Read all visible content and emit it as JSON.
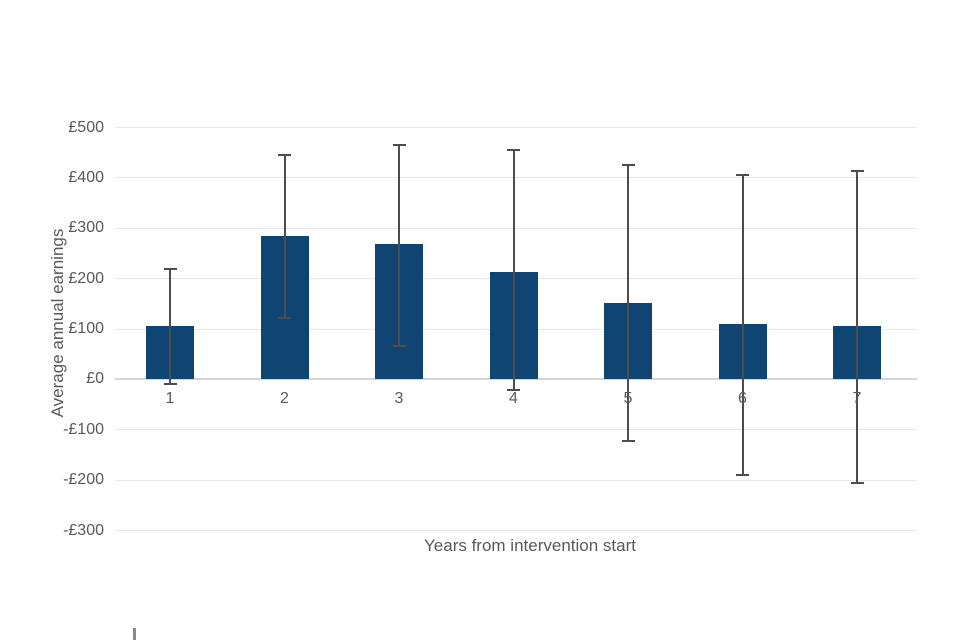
{
  "chart_data": {
    "type": "bar",
    "title": "",
    "categories": [
      "1",
      "2",
      "3",
      "4",
      "5",
      "6",
      "7"
    ],
    "series": [
      {
        "name": "Average annual earnings",
        "values": [
          107,
          284,
          268,
          214,
          152,
          110,
          106
        ]
      }
    ],
    "error_bars": {
      "upper": [
        220,
        445,
        465,
        455,
        425,
        406,
        413
      ],
      "lower": [
        -10,
        122,
        67,
        -20,
        -122,
        -190,
        -205
      ]
    },
    "xlabel": "Years from intervention start",
    "ylabel": "Average annual earnings",
    "y_ticks": [
      500,
      400,
      300,
      200,
      100,
      0,
      -100,
      -200,
      -300
    ],
    "y_tick_labels": [
      "£500",
      "£400",
      "£300",
      "£200",
      "£100",
      "£0",
      "-£100",
      "-£200",
      "-£300"
    ],
    "ylim": [
      -300,
      500
    ],
    "grid": true,
    "legend": "none",
    "colors": {
      "bar_fill": "#0f4473",
      "error_bar": "#4d4d4d",
      "axis_text": "#595959",
      "gridline": "#e8e7e7",
      "zero_line": "#d6d5d5"
    }
  }
}
